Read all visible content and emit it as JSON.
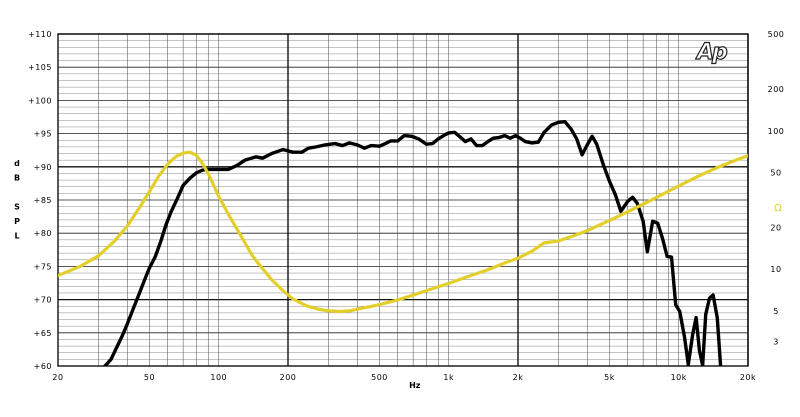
{
  "logo_text": "Ap",
  "chart_data": {
    "type": "line",
    "x_scale": "log",
    "xlim": [
      20,
      20000
    ],
    "ylim": [
      60,
      110
    ],
    "y2_scale": "log",
    "y2lim": [
      2,
      500
    ],
    "xlabel": "Hz",
    "ylabel": [
      "d",
      "B",
      "",
      "S",
      "P",
      "L"
    ],
    "y2label": "Ω",
    "x_ticks": [
      {
        "value": 20,
        "label": "20"
      },
      {
        "value": 50,
        "label": "50"
      },
      {
        "value": 100,
        "label": "100"
      },
      {
        "value": 200,
        "label": "200"
      },
      {
        "value": 500,
        "label": "500"
      },
      {
        "value": 1000,
        "label": "1k"
      },
      {
        "value": 2000,
        "label": "2k"
      },
      {
        "value": 5000,
        "label": "5k"
      },
      {
        "value": 10000,
        "label": "10k"
      },
      {
        "value": 20000,
        "label": "20k"
      }
    ],
    "y_ticks": [
      {
        "value": 60,
        "label": "+60"
      },
      {
        "value": 65,
        "label": "+65"
      },
      {
        "value": 70,
        "label": "+70"
      },
      {
        "value": 75,
        "label": "+75"
      },
      {
        "value": 80,
        "label": "+80"
      },
      {
        "value": 85,
        "label": "+85"
      },
      {
        "value": 90,
        "label": "+90"
      },
      {
        "value": 95,
        "label": "+95"
      },
      {
        "value": 100,
        "label": "+100"
      },
      {
        "value": 105,
        "label": "+105"
      },
      {
        "value": 110,
        "label": "+110"
      }
    ],
    "y2_ticks": [
      {
        "value": 3,
        "label": "3"
      },
      {
        "value": 5,
        "label": "5"
      },
      {
        "value": 10,
        "label": "10"
      },
      {
        "value": 20,
        "label": "20"
      },
      {
        "value": 50,
        "label": "50"
      },
      {
        "value": 100,
        "label": "100"
      },
      {
        "value": 200,
        "label": "200"
      },
      {
        "value": 500,
        "label": "500"
      }
    ],
    "grid": true,
    "series": [
      {
        "axis": "left",
        "color": "#000000",
        "points": [
          [
            32,
            60
          ],
          [
            34,
            61
          ],
          [
            36,
            62.8
          ],
          [
            38,
            64.5
          ],
          [
            40,
            66.3
          ],
          [
            42,
            68.2
          ],
          [
            45,
            70.8
          ],
          [
            48,
            73.3
          ],
          [
            50,
            74.8
          ],
          [
            53,
            76.5
          ],
          [
            56,
            78.8
          ],
          [
            59,
            81.3
          ],
          [
            62,
            83.2
          ],
          [
            66,
            85.2
          ],
          [
            70,
            87.2
          ],
          [
            75,
            88.3
          ],
          [
            80,
            89.1
          ],
          [
            85,
            89.5
          ],
          [
            90,
            89.6
          ],
          [
            100,
            89.6
          ],
          [
            110,
            89.6
          ],
          [
            120,
            90.2
          ],
          [
            130,
            91
          ],
          [
            145,
            91.5
          ],
          [
            155,
            91.3
          ],
          [
            170,
            92
          ],
          [
            190,
            92.6
          ],
          [
            210,
            92.2
          ],
          [
            230,
            92.2
          ],
          [
            245,
            92.8
          ],
          [
            265,
            93
          ],
          [
            290,
            93.3
          ],
          [
            320,
            93.5
          ],
          [
            345,
            93.2
          ],
          [
            370,
            93.6
          ],
          [
            400,
            93.3
          ],
          [
            430,
            92.8
          ],
          [
            460,
            93.2
          ],
          [
            500,
            93.1
          ],
          [
            530,
            93.5
          ],
          [
            560,
            93.9
          ],
          [
            600,
            93.9
          ],
          [
            640,
            94.7
          ],
          [
            690,
            94.6
          ],
          [
            740,
            94.2
          ],
          [
            800,
            93.4
          ],
          [
            850,
            93.5
          ],
          [
            900,
            94.2
          ],
          [
            960,
            94.8
          ],
          [
            1000,
            95.1
          ],
          [
            1060,
            95.2
          ],
          [
            1120,
            94.5
          ],
          [
            1180,
            93.8
          ],
          [
            1250,
            94.2
          ],
          [
            1320,
            93.2
          ],
          [
            1400,
            93.2
          ],
          [
            1480,
            93.8
          ],
          [
            1560,
            94.3
          ],
          [
            1650,
            94.4
          ],
          [
            1750,
            94.7
          ],
          [
            1850,
            94.3
          ],
          [
            1950,
            94.7
          ],
          [
            2050,
            94.3
          ],
          [
            2150,
            93.8
          ],
          [
            2300,
            93.6
          ],
          [
            2450,
            93.7
          ],
          [
            2600,
            95.2
          ],
          [
            2800,
            96.3
          ],
          [
            3000,
            96.7
          ],
          [
            3200,
            96.8
          ],
          [
            3400,
            95.7
          ],
          [
            3600,
            94.2
          ],
          [
            3800,
            91.8
          ],
          [
            4000,
            93.3
          ],
          [
            4200,
            94.6
          ],
          [
            4400,
            93.4
          ],
          [
            4700,
            90.3
          ],
          [
            5000,
            87.8
          ],
          [
            5300,
            85.8
          ],
          [
            5600,
            83.3
          ],
          [
            6000,
            84.8
          ],
          [
            6300,
            85.4
          ],
          [
            6600,
            84.5
          ],
          [
            7000,
            81.8
          ],
          [
            7300,
            77.2
          ],
          [
            7700,
            81.8
          ],
          [
            8100,
            81.5
          ],
          [
            8500,
            79.2
          ],
          [
            8900,
            76.5
          ],
          [
            9300,
            76.4
          ],
          [
            9700,
            69.2
          ],
          [
            10100,
            68.2
          ],
          [
            10600,
            64.3
          ],
          [
            11000,
            60.2
          ],
          [
            11500,
            64.8
          ],
          [
            11900,
            67.3
          ],
          [
            12300,
            62.3
          ],
          [
            12700,
            60.1
          ],
          [
            13100,
            67.8
          ],
          [
            13600,
            70.2
          ],
          [
            14100,
            70.7
          ],
          [
            14700,
            67.3
          ],
          [
            15200,
            60
          ]
        ]
      },
      {
        "axis": "right",
        "color": "#e3cf2a",
        "points": [
          [
            20,
            9
          ],
          [
            25,
            10.5
          ],
          [
            30,
            12.5
          ],
          [
            35,
            15.8
          ],
          [
            40,
            20.5
          ],
          [
            45,
            27.5
          ],
          [
            50,
            36.5
          ],
          [
            55,
            47.5
          ],
          [
            60,
            57.5
          ],
          [
            65,
            65
          ],
          [
            70,
            69
          ],
          [
            75,
            70
          ],
          [
            80,
            66.5
          ],
          [
            85,
            58
          ],
          [
            90,
            49
          ],
          [
            95,
            40.5
          ],
          [
            100,
            33.5
          ],
          [
            110,
            25
          ],
          [
            120,
            19.5
          ],
          [
            130,
            15.5
          ],
          [
            140,
            12.5
          ],
          [
            150,
            10.8
          ],
          [
            170,
            8.4
          ],
          [
            190,
            7
          ],
          [
            210,
            6.1
          ],
          [
            240,
            5.45
          ],
          [
            270,
            5.15
          ],
          [
            300,
            5.0
          ],
          [
            340,
            4.95
          ],
          [
            370,
            5.0
          ],
          [
            400,
            5.15
          ],
          [
            450,
            5.35
          ],
          [
            500,
            5.55
          ],
          [
            600,
            6.0
          ],
          [
            700,
            6.5
          ],
          [
            800,
            7.0
          ],
          [
            1000,
            7.9
          ],
          [
            1200,
            8.8
          ],
          [
            1500,
            10
          ],
          [
            1800,
            11.3
          ],
          [
            2000,
            12
          ],
          [
            2300,
            13.5
          ],
          [
            2600,
            15.5
          ],
          [
            3000,
            16
          ],
          [
            3500,
            17.5
          ],
          [
            4000,
            19
          ],
          [
            5000,
            22.5
          ],
          [
            6000,
            26
          ],
          [
            7000,
            29.5
          ],
          [
            8000,
            33
          ],
          [
            10000,
            40
          ],
          [
            12000,
            46.5
          ],
          [
            15000,
            55
          ],
          [
            18000,
            62
          ],
          [
            20000,
            66
          ]
        ]
      }
    ]
  }
}
